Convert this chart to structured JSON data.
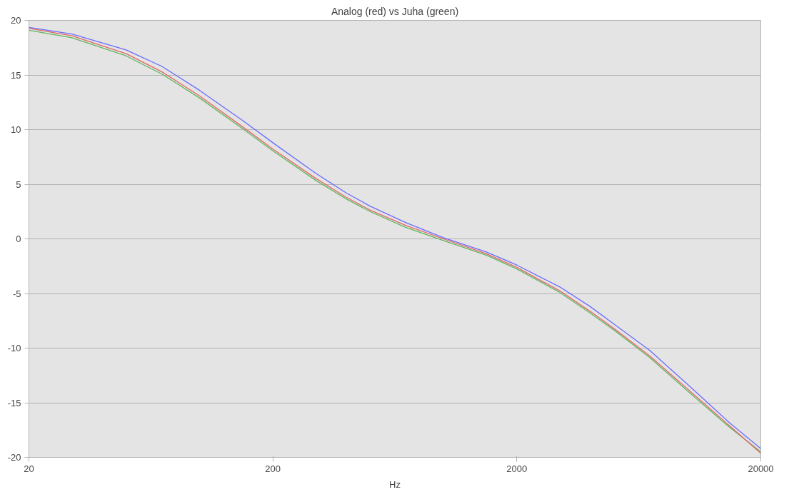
{
  "chart_data": {
    "type": "line",
    "title": "Analog (red) vs Juha (green)",
    "xlabel": "Hz",
    "log": "x",
    "grid": "y",
    "xlim": [
      20,
      20000
    ],
    "xticks": [
      20,
      200,
      2000,
      20000
    ],
    "ylim": [
      -20,
      20
    ],
    "yticks": [
      -20,
      -15,
      -10,
      -5,
      0,
      5,
      10,
      15,
      20
    ],
    "x": [
      20,
      30,
      50,
      70,
      100,
      150,
      200,
      300,
      400,
      500,
      700,
      1000,
      1500,
      2000,
      3000,
      4000,
      5000,
      7000,
      10000,
      15000,
      20000
    ],
    "series": [
      {
        "color": "#6b6bff",
        "values": [
          19.35,
          18.75,
          17.3,
          15.8,
          13.6,
          10.85,
          8.8,
          6.0,
          4.2,
          3.0,
          1.5,
          0.1,
          -1.2,
          -2.4,
          -4.4,
          -6.2,
          -7.8,
          -10.2,
          -13.3,
          -16.9,
          -19.2
        ]
      },
      {
        "color": "#5cb85c",
        "values": [
          19.1,
          18.4,
          16.75,
          15.1,
          12.9,
          10.1,
          8.05,
          5.35,
          3.65,
          2.5,
          1.05,
          -0.15,
          -1.5,
          -2.75,
          -4.9,
          -6.8,
          -8.35,
          -10.85,
          -13.9,
          -17.3,
          -19.5
        ]
      },
      {
        "color": "#e06666",
        "values": [
          19.27,
          18.59,
          16.95,
          15.3,
          13.09,
          10.27,
          8.22,
          5.53,
          3.81,
          2.64,
          1.23,
          0.0,
          -1.36,
          -2.61,
          -4.76,
          -6.64,
          -8.21,
          -10.7,
          -13.73,
          -17.17,
          -19.62
        ]
      }
    ]
  }
}
